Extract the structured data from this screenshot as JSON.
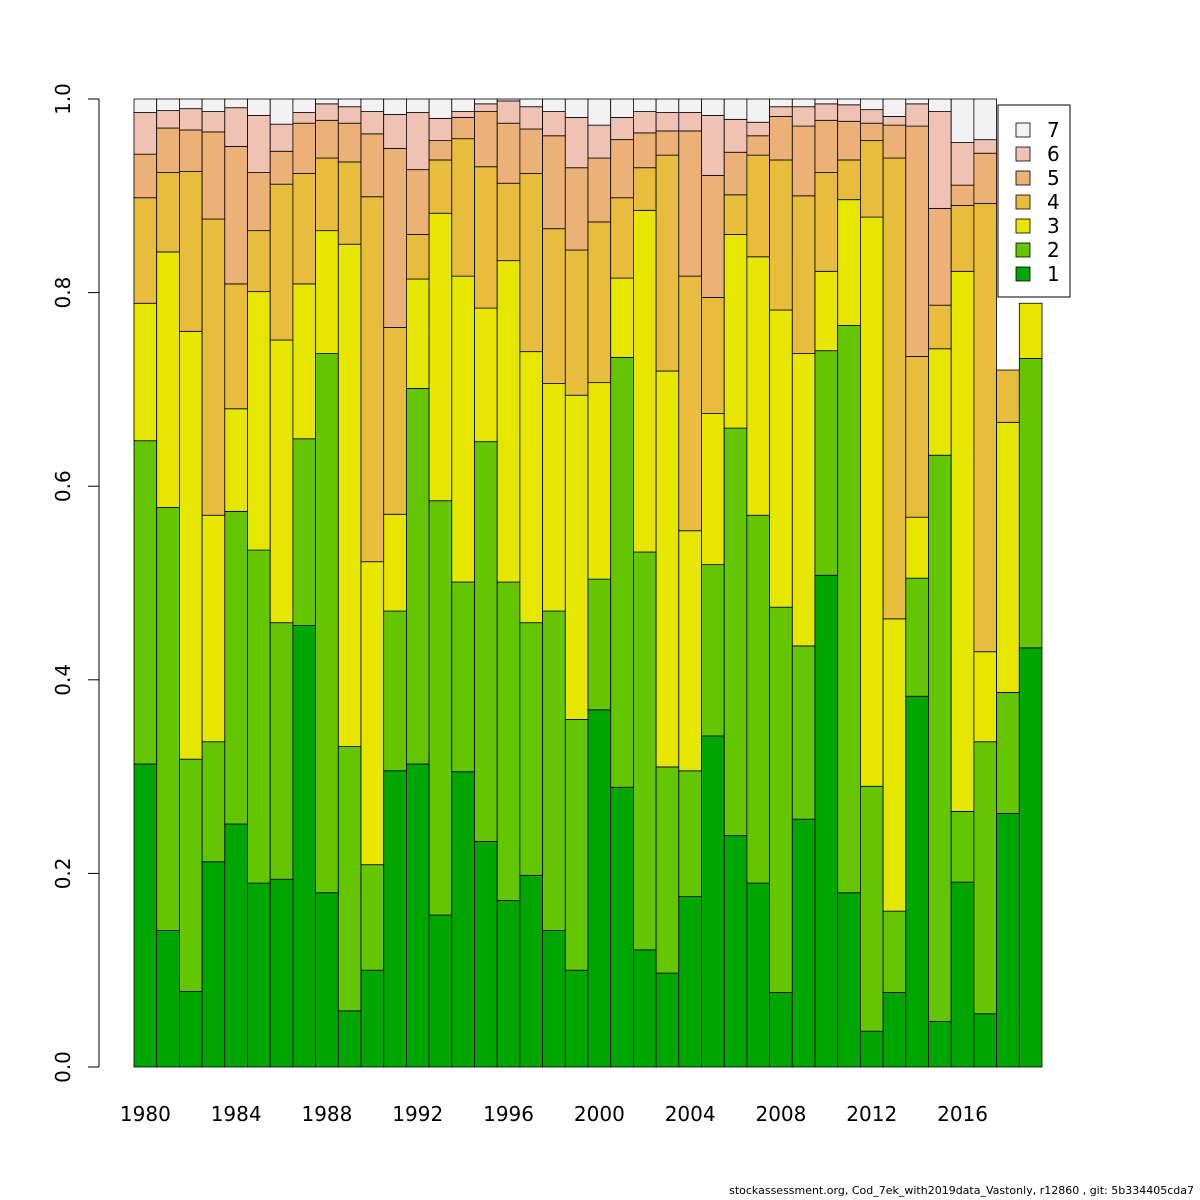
{
  "chart_data": {
    "type": "bar",
    "stacked": true,
    "categories": [
      "1980",
      "1981",
      "1982",
      "1983",
      "1984",
      "1985",
      "1986",
      "1987",
      "1988",
      "1989",
      "1990",
      "1991",
      "1992",
      "1993",
      "1994",
      "1995",
      "1996",
      "1997",
      "1998",
      "1999",
      "2000",
      "2001",
      "2002",
      "2003",
      "2004",
      "2005",
      "2006",
      "2007",
      "2008",
      "2009",
      "2010",
      "2011",
      "2012",
      "2013",
      "2014",
      "2015",
      "2016",
      "2017",
      "2018",
      "2019"
    ],
    "x_tick_labels": [
      "1980",
      "1984",
      "1988",
      "1992",
      "1996",
      "2000",
      "2004",
      "2008",
      "2012",
      "2016"
    ],
    "y_tick_labels": [
      "0.0",
      "0.2",
      "0.4",
      "0.6",
      "0.8",
      "1.0"
    ],
    "ylim": [
      0,
      1
    ],
    "grid": false,
    "legend_position": "top-right",
    "series": [
      {
        "name": "1",
        "color": "#00A600",
        "values": [
          0.313,
          0.141,
          0.078,
          0.212,
          0.251,
          0.19,
          0.194,
          0.456,
          0.18,
          0.058,
          0.1,
          0.306,
          0.313,
          0.157,
          0.305,
          0.233,
          0.172,
          0.198,
          0.141,
          0.1,
          0.369,
          0.289,
          0.121,
          0.097,
          0.176,
          0.342,
          0.239,
          0.19,
          0.077,
          0.256,
          0.508,
          0.18,
          0.037,
          0.077,
          0.383,
          0.047,
          0.191,
          0.055,
          0.262,
          0.433
        ]
      },
      {
        "name": "2",
        "color": "#63C600",
        "values": [
          0.334,
          0.437,
          0.24,
          0.124,
          0.323,
          0.344,
          0.265,
          0.193,
          0.557,
          0.273,
          0.109,
          0.165,
          0.388,
          0.428,
          0.196,
          0.413,
          0.329,
          0.261,
          0.33,
          0.259,
          0.135,
          0.444,
          0.411,
          0.213,
          0.13,
          0.177,
          0.421,
          0.38,
          0.398,
          0.179,
          0.232,
          0.586,
          0.253,
          0.084,
          0.122,
          0.585,
          0.073,
          0.281,
          0.125,
          0.299
        ]
      },
      {
        "name": "3",
        "color": "#E6E600",
        "values": [
          0.142,
          0.264,
          0.442,
          0.234,
          0.106,
          0.267,
          0.292,
          0.16,
          0.127,
          0.519,
          0.313,
          0.1,
          0.113,
          0.297,
          0.316,
          0.138,
          0.332,
          0.28,
          0.235,
          0.335,
          0.203,
          0.082,
          0.353,
          0.409,
          0.248,
          0.156,
          0.2,
          0.267,
          0.307,
          0.302,
          0.082,
          0.13,
          0.588,
          0.302,
          0.063,
          0.11,
          0.558,
          0.093,
          0.279,
          0.057
        ]
      },
      {
        "name": "4",
        "color": "#E8BD3D",
        "values": [
          0.109,
          0.082,
          0.165,
          0.306,
          0.129,
          0.063,
          0.161,
          0.114,
          0.075,
          0.085,
          0.377,
          0.193,
          0.046,
          0.055,
          0.142,
          0.146,
          0.08,
          0.184,
          0.16,
          0.15,
          0.166,
          0.083,
          0.044,
          0.223,
          0.263,
          0.12,
          0.041,
          0.105,
          0.155,
          0.163,
          0.102,
          0.041,
          0.079,
          0.476,
          0.166,
          0.045,
          0.068,
          0.463,
          0.054,
          0.0
        ]
      },
      {
        "name": "5",
        "color": "#ECB176",
        "values": [
          0.045,
          0.046,
          0.043,
          0.09,
          0.142,
          0.06,
          0.034,
          0.052,
          0.039,
          0.04,
          0.065,
          0.185,
          0.067,
          0.02,
          0.022,
          0.057,
          0.062,
          0.046,
          0.096,
          0.085,
          0.066,
          0.06,
          0.036,
          0.025,
          0.15,
          0.126,
          0.044,
          0.02,
          0.045,
          0.072,
          0.054,
          0.04,
          0.018,
          0.034,
          0.238,
          0.1,
          0.021,
          0.052,
          0.0,
          0.0
        ]
      },
      {
        "name": "6",
        "color": "#EFC2B3",
        "values": [
          0.043,
          0.018,
          0.022,
          0.021,
          0.04,
          0.059,
          0.028,
          0.011,
          0.017,
          0.017,
          0.023,
          0.035,
          0.059,
          0.023,
          0.006,
          0.008,
          0.023,
          0.023,
          0.025,
          0.052,
          0.034,
          0.023,
          0.022,
          0.019,
          0.019,
          0.062,
          0.034,
          0.014,
          0.01,
          0.02,
          0.017,
          0.017,
          0.014,
          0.009,
          0.023,
          0.1,
          0.044,
          0.014,
          0.0,
          0.0
        ]
      },
      {
        "name": "7",
        "color": "#F2F2F2",
        "values": [
          0.014,
          0.012,
          0.01,
          0.013,
          0.009,
          0.017,
          0.026,
          0.014,
          0.005,
          0.008,
          0.013,
          0.016,
          0.014,
          0.02,
          0.013,
          0.005,
          0.002,
          0.008,
          0.013,
          0.019,
          0.027,
          0.019,
          0.015,
          0.015,
          0.014,
          0.017,
          0.021,
          0.024,
          0.008,
          0.008,
          0.005,
          0.006,
          0.011,
          0.018,
          0.005,
          0.013,
          0.045,
          0.042,
          0.0,
          0.0
        ]
      }
    ],
    "footer": "stockassessment.org, Cod_7ek_with2019data_Vastonly, r12860 , git: 5b334405cda7"
  }
}
